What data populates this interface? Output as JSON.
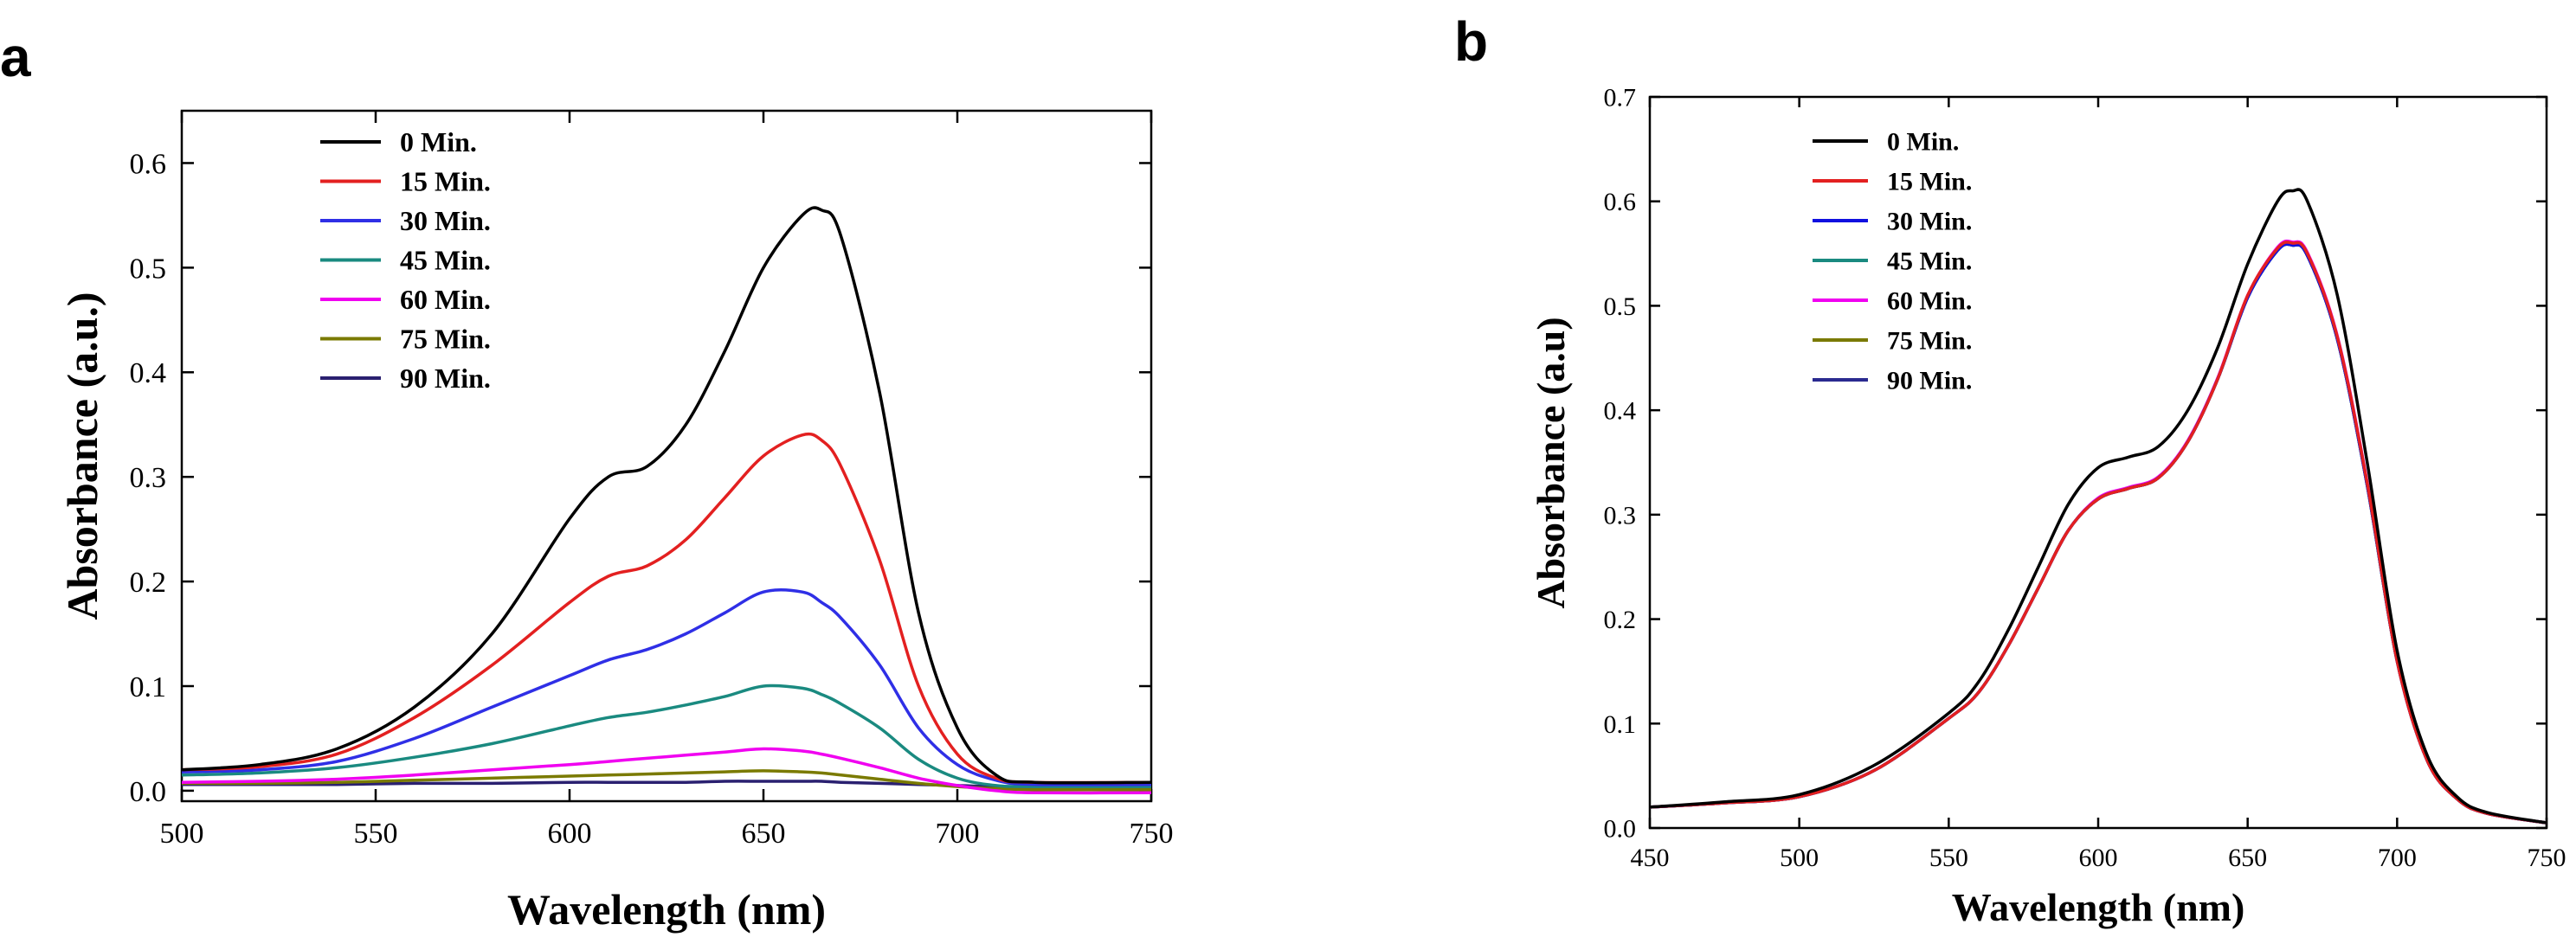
{
  "panels": [
    {
      "label": "a",
      "chart_data": {
        "type": "line",
        "title": "",
        "xlabel": "Wavelength (nm)",
        "ylabel": "Absorbance (a.u.)",
        "xlim": [
          500,
          750
        ],
        "ylim": [
          -0.01,
          0.65
        ],
        "xticks": [
          500,
          550,
          600,
          650,
          700,
          750
        ],
        "yticks": [
          0.0,
          0.1,
          0.2,
          0.3,
          0.4,
          0.5,
          0.6
        ],
        "xtick_labels": [
          "500",
          "550",
          "600",
          "650",
          "700",
          "750"
        ],
        "ytick_labels": [
          "0.0",
          "0.1",
          "0.2",
          "0.3",
          "0.4",
          "0.5",
          "0.6"
        ],
        "grid": false,
        "legend_position": "top-left",
        "x": [
          500,
          520,
          540,
          560,
          580,
          600,
          610,
          620,
          630,
          640,
          650,
          660,
          665,
          670,
          680,
          690,
          700,
          710,
          720,
          750
        ],
        "series": [
          {
            "name": "0 Min.",
            "color": "#000000",
            "values": [
              0.02,
              0.025,
              0.04,
              0.08,
              0.15,
              0.26,
              0.3,
              0.31,
              0.35,
              0.42,
              0.5,
              0.55,
              0.555,
              0.53,
              0.38,
              0.17,
              0.06,
              0.015,
              0.008,
              0.008
            ]
          },
          {
            "name": "15 Min.",
            "color": "#e32020",
            "values": [
              0.02,
              0.023,
              0.035,
              0.07,
              0.12,
              0.18,
              0.205,
              0.215,
              0.24,
              0.28,
              0.32,
              0.34,
              0.335,
              0.31,
              0.22,
              0.1,
              0.035,
              0.012,
              0.008,
              0.008
            ]
          },
          {
            "name": "30 Min.",
            "color": "#2f2fe6",
            "values": [
              0.018,
              0.02,
              0.028,
              0.05,
              0.08,
              0.11,
              0.125,
              0.135,
              0.15,
              0.17,
              0.19,
              0.19,
              0.18,
              0.165,
              0.12,
              0.06,
              0.025,
              0.01,
              0.006,
              0.006
            ]
          },
          {
            "name": "45 Min.",
            "color": "#1a8a80",
            "values": [
              0.015,
              0.017,
              0.022,
              0.032,
              0.045,
              0.062,
              0.07,
              0.075,
              0.082,
              0.09,
              0.1,
              0.098,
              0.092,
              0.083,
              0.06,
              0.03,
              0.012,
              0.005,
              0.004,
              0.004
            ]
          },
          {
            "name": "60 Min.",
            "color": "#f000f0",
            "values": [
              0.008,
              0.009,
              0.011,
              0.015,
              0.02,
              0.025,
              0.028,
              0.031,
              0.034,
              0.037,
              0.04,
              0.038,
              0.035,
              0.031,
              0.022,
              0.012,
              0.005,
              0.0,
              -0.002,
              -0.002
            ]
          },
          {
            "name": "75 Min.",
            "color": "#7a7a00",
            "values": [
              0.007,
              0.007,
              0.008,
              0.01,
              0.012,
              0.014,
              0.015,
              0.016,
              0.017,
              0.018,
              0.019,
              0.018,
              0.017,
              0.015,
              0.011,
              0.007,
              0.004,
              0.002,
              0.001,
              0.001
            ]
          },
          {
            "name": "90 Min.",
            "color": "#2a2070",
            "values": [
              0.006,
              0.006,
              0.006,
              0.007,
              0.007,
              0.008,
              0.008,
              0.008,
              0.008,
              0.009,
              0.009,
              0.009,
              0.009,
              0.008,
              0.007,
              0.006,
              0.005,
              0.004,
              0.004,
              0.004
            ]
          }
        ]
      }
    },
    {
      "label": "b",
      "chart_data": {
        "type": "line",
        "title": "",
        "xlabel": "Wavelength (nm)",
        "ylabel": "Absorbance (a.u)",
        "xlim": [
          450,
          750
        ],
        "ylim": [
          0.0,
          0.7
        ],
        "xticks": [
          450,
          500,
          550,
          600,
          650,
          700,
          750
        ],
        "yticks": [
          0.0,
          0.1,
          0.2,
          0.3,
          0.4,
          0.5,
          0.6,
          0.7
        ],
        "xtick_labels": [
          "450",
          "500",
          "550",
          "600",
          "650",
          "700",
          "750"
        ],
        "ytick_labels": [
          "0.0",
          "0.1",
          "0.2",
          "0.3",
          "0.4",
          "0.5",
          "0.6",
          "0.7"
        ],
        "grid": false,
        "legend_position": "top-left",
        "x": [
          450,
          475,
          500,
          525,
          550,
          560,
          570,
          580,
          590,
          600,
          610,
          620,
          630,
          640,
          650,
          660,
          665,
          670,
          680,
          690,
          700,
          710,
          720,
          730,
          750
        ],
        "series": [
          {
            "name": "0 Min.",
            "color": "#000000",
            "values": [
              0.02,
              0.025,
              0.032,
              0.06,
              0.11,
              0.14,
              0.19,
              0.25,
              0.31,
              0.345,
              0.355,
              0.365,
              0.4,
              0.46,
              0.54,
              0.6,
              0.61,
              0.6,
              0.51,
              0.35,
              0.17,
              0.07,
              0.03,
              0.015,
              0.005
            ]
          },
          {
            "name": "15 Min.",
            "color": "#e32020",
            "values": [
              0.02,
              0.024,
              0.03,
              0.055,
              0.105,
              0.13,
              0.175,
              0.23,
              0.285,
              0.315,
              0.325,
              0.335,
              0.37,
              0.43,
              0.51,
              0.555,
              0.56,
              0.55,
              0.47,
              0.33,
              0.16,
              0.065,
              0.028,
              0.014,
              0.005
            ]
          },
          {
            "name": "30 Min.",
            "color": "#1010e0",
            "values": [
              0.02,
              0.024,
              0.03,
              0.055,
              0.105,
              0.13,
              0.175,
              0.23,
              0.285,
              0.315,
              0.325,
              0.335,
              0.37,
              0.43,
              0.508,
              0.553,
              0.558,
              0.548,
              0.468,
              0.328,
              0.16,
              0.065,
              0.028,
              0.014,
              0.005
            ]
          },
          {
            "name": "45 Min.",
            "color": "#1a8a80",
            "values": [
              0.02,
              0.024,
              0.03,
              0.055,
              0.105,
              0.13,
              0.175,
              0.23,
              0.285,
              0.315,
              0.325,
              0.335,
              0.37,
              0.43,
              0.508,
              0.553,
              0.558,
              0.548,
              0.468,
              0.328,
              0.16,
              0.065,
              0.028,
              0.014,
              0.005
            ]
          },
          {
            "name": "60 Min.",
            "color": "#f000f0",
            "values": [
              0.02,
              0.024,
              0.03,
              0.055,
              0.105,
              0.13,
              0.175,
              0.23,
              0.285,
              0.316,
              0.326,
              0.336,
              0.371,
              0.431,
              0.51,
              0.556,
              0.561,
              0.551,
              0.471,
              0.331,
              0.16,
              0.065,
              0.028,
              0.014,
              0.005
            ]
          },
          {
            "name": "75 Min.",
            "color": "#7a7a00",
            "values": [
              0.02,
              0.024,
              0.03,
              0.055,
              0.105,
              0.13,
              0.175,
              0.23,
              0.285,
              0.315,
              0.325,
              0.335,
              0.37,
              0.43,
              0.508,
              0.553,
              0.558,
              0.548,
              0.468,
              0.328,
              0.16,
              0.065,
              0.028,
              0.014,
              0.005
            ]
          },
          {
            "name": "90 Min.",
            "color": "#2a2a90",
            "values": [
              0.02,
              0.024,
              0.03,
              0.055,
              0.105,
              0.13,
              0.175,
              0.23,
              0.285,
              0.315,
              0.325,
              0.335,
              0.37,
              0.43,
              0.508,
              0.553,
              0.558,
              0.548,
              0.468,
              0.328,
              0.16,
              0.065,
              0.028,
              0.014,
              0.005
            ]
          }
        ]
      }
    }
  ]
}
